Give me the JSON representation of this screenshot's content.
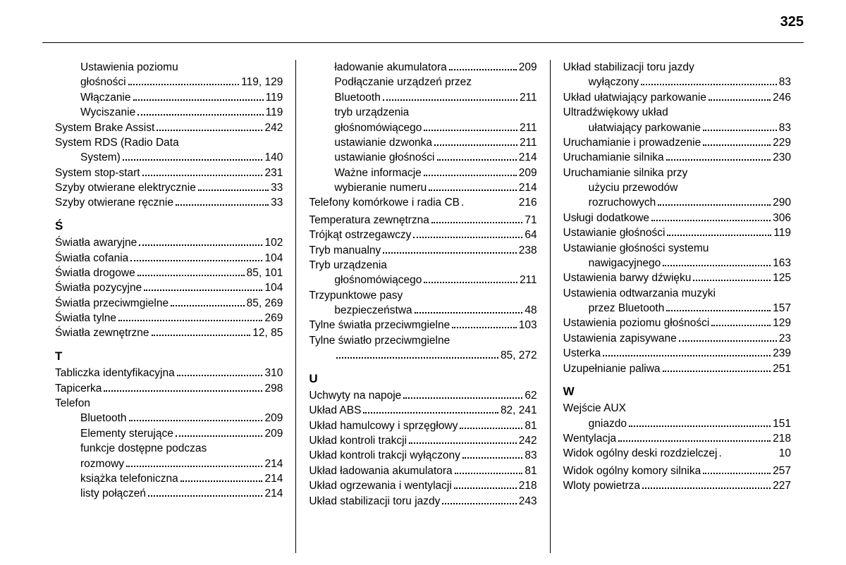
{
  "page_number": "325",
  "columns": [
    {
      "items": [
        {
          "type": "wrap",
          "indent": 2,
          "text": "Ustawienia poziomu"
        },
        {
          "type": "entry",
          "indent": 2,
          "label": "głośności",
          "pages": "119, 129"
        },
        {
          "type": "entry",
          "indent": 2,
          "label": "Włączanie",
          "pages": "119"
        },
        {
          "type": "entry",
          "indent": 2,
          "label": "Wyciszanie",
          "pages": "119"
        },
        {
          "type": "entry",
          "indent": 0,
          "label": "System Brake Assist",
          "pages": "242"
        },
        {
          "type": "wrap",
          "indent": 0,
          "text": "System RDS (Radio Data"
        },
        {
          "type": "entry",
          "indent": 2,
          "label": "System)",
          "pages": "140"
        },
        {
          "type": "entry",
          "indent": 0,
          "label": "System stop-start",
          "pages": "231"
        },
        {
          "type": "entry",
          "indent": 0,
          "label": "Szyby otwierane elektrycznie",
          "pages": "33"
        },
        {
          "type": "entry",
          "indent": 0,
          "label": "Szyby otwierane ręcznie",
          "pages": "33"
        },
        {
          "type": "head",
          "text": "Ś"
        },
        {
          "type": "entry",
          "indent": 0,
          "label": "Światła awaryjne",
          "pages": "102"
        },
        {
          "type": "entry",
          "indent": 0,
          "label": "Światła cofania",
          "pages": "104"
        },
        {
          "type": "entry",
          "indent": 0,
          "label": "Światła drogowe",
          "pages": "85, 101"
        },
        {
          "type": "entry",
          "indent": 0,
          "label": "Światła pozycyjne",
          "pages": "104"
        },
        {
          "type": "entry",
          "indent": 0,
          "label": "Światła przeciwmgielne",
          "pages": "85, 269"
        },
        {
          "type": "entry",
          "indent": 0,
          "label": "Światła tylne",
          "pages": "269"
        },
        {
          "type": "entry",
          "indent": 0,
          "label": "Światła zewnętrzne",
          "pages": "12, 85"
        },
        {
          "type": "head",
          "text": "T"
        },
        {
          "type": "entry",
          "indent": 0,
          "label": "Tabliczka identyfikacyjna",
          "pages": "310"
        },
        {
          "type": "entry",
          "indent": 0,
          "label": "Tapicerka",
          "pages": "298"
        },
        {
          "type": "wrap",
          "indent": 0,
          "text": "Telefon"
        },
        {
          "type": "entry",
          "indent": 2,
          "label": "Bluetooth",
          "pages": "209"
        },
        {
          "type": "entry",
          "indent": 2,
          "label": "Elementy sterujące",
          "pages": "209"
        },
        {
          "type": "wrap",
          "indent": 2,
          "text": "funkcje dostępne podczas"
        },
        {
          "type": "entry",
          "indent": 2,
          "label": "rozmowy",
          "pages": "214"
        },
        {
          "type": "entry",
          "indent": 2,
          "label": "książka telefoniczna",
          "pages": "214"
        },
        {
          "type": "entry",
          "indent": 2,
          "label": "listy połączeń",
          "pages": "214"
        }
      ]
    },
    {
      "items": [
        {
          "type": "entry",
          "indent": 2,
          "label": "ładowanie akumulatora",
          "pages": "209"
        },
        {
          "type": "wrap",
          "indent": 2,
          "text": "Podłączanie urządzeń przez"
        },
        {
          "type": "entry",
          "indent": 2,
          "label": "Bluetooth",
          "pages": "211"
        },
        {
          "type": "wrap",
          "indent": 2,
          "text": "tryb urządzenia"
        },
        {
          "type": "entry",
          "indent": 2,
          "label": "głośnomówiącego",
          "pages": "211"
        },
        {
          "type": "entry",
          "indent": 2,
          "label": "ustawianie dzwonka",
          "pages": "211"
        },
        {
          "type": "entry",
          "indent": 2,
          "label": "ustawianie głośności",
          "pages": "214"
        },
        {
          "type": "entry",
          "indent": 2,
          "label": "Ważne informacje",
          "pages": "209"
        },
        {
          "type": "entry",
          "indent": 2,
          "label": "wybieranie numeru",
          "pages": "214"
        },
        {
          "type": "entry",
          "indent": 0,
          "label": "Telefony komórkowe i radia CB",
          "pages": "216",
          "tight": true
        },
        {
          "type": "entry",
          "indent": 0,
          "label": "Temperatura zewnętrzna",
          "pages": "71"
        },
        {
          "type": "entry",
          "indent": 0,
          "label": "Trójkąt ostrzegawczy",
          "pages": "64"
        },
        {
          "type": "entry",
          "indent": 0,
          "label": "Tryb manualny",
          "pages": "238"
        },
        {
          "type": "wrap",
          "indent": 0,
          "text": "Tryb urządzenia"
        },
        {
          "type": "entry",
          "indent": 2,
          "label": "głośnomówiącego",
          "pages": "211"
        },
        {
          "type": "wrap",
          "indent": 0,
          "text": "Trzypunktowe pasy"
        },
        {
          "type": "entry",
          "indent": 2,
          "label": "bezpieczeństwa",
          "pages": "48"
        },
        {
          "type": "entry",
          "indent": 0,
          "label": "Tylne światła przeciwmgielne",
          "pages": "103"
        },
        {
          "type": "wrap",
          "indent": 0,
          "text": "Tylne światło przeciwmgielne"
        },
        {
          "type": "entry",
          "indent": 2,
          "label": "",
          "pages": "85, 272"
        },
        {
          "type": "head",
          "text": "U"
        },
        {
          "type": "entry",
          "indent": 0,
          "label": "Uchwyty na napoje",
          "pages": "62"
        },
        {
          "type": "entry",
          "indent": 0,
          "label": "Układ ABS",
          "pages": "82, 241"
        },
        {
          "type": "entry",
          "indent": 0,
          "label": "Układ hamulcowy i sprzęgłowy",
          "pages": "81"
        },
        {
          "type": "entry",
          "indent": 0,
          "label": "Układ kontroli trakcji",
          "pages": "242"
        },
        {
          "type": "entry",
          "indent": 0,
          "label": "Układ kontroli trakcji wyłączony",
          "pages": "83"
        },
        {
          "type": "entry",
          "indent": 0,
          "label": "Układ ładowania akumulatora",
          "pages": "81"
        },
        {
          "type": "entry",
          "indent": 0,
          "label": "Układ ogrzewania i wentylacji",
          "pages": "218"
        },
        {
          "type": "entry",
          "indent": 0,
          "label": "Układ stabilizacji toru jazdy",
          "pages": "243"
        }
      ]
    },
    {
      "items": [
        {
          "type": "wrap",
          "indent": 0,
          "text": "Układ stabilizacji toru jazdy"
        },
        {
          "type": "entry",
          "indent": 2,
          "label": "wyłączony",
          "pages": "83"
        },
        {
          "type": "entry",
          "indent": 0,
          "label": "Układ ułatwiający parkowanie",
          "pages": "246"
        },
        {
          "type": "wrap",
          "indent": 0,
          "text": "Ultradźwiękowy układ"
        },
        {
          "type": "entry",
          "indent": 2,
          "label": "ułatwiający parkowanie",
          "pages": "83"
        },
        {
          "type": "entry",
          "indent": 0,
          "label": "Uruchamianie i prowadzenie",
          "pages": "229"
        },
        {
          "type": "entry",
          "indent": 0,
          "label": "Uruchamianie silnika",
          "pages": "230"
        },
        {
          "type": "wrap",
          "indent": 0,
          "text": "Uruchamianie silnika przy"
        },
        {
          "type": "wrap",
          "indent": 2,
          "text": "użyciu przewodów"
        },
        {
          "type": "entry",
          "indent": 2,
          "label": "rozruchowych",
          "pages": "290"
        },
        {
          "type": "entry",
          "indent": 0,
          "label": "Usługi dodatkowe",
          "pages": "306"
        },
        {
          "type": "entry",
          "indent": 0,
          "label": "Ustawianie głośności",
          "pages": "119"
        },
        {
          "type": "wrap",
          "indent": 0,
          "text": "Ustawianie głośności systemu"
        },
        {
          "type": "entry",
          "indent": 2,
          "label": "nawigacyjnego",
          "pages": "163"
        },
        {
          "type": "entry",
          "indent": 0,
          "label": "Ustawienia barwy dźwięku",
          "pages": "125"
        },
        {
          "type": "wrap",
          "indent": 0,
          "text": "Ustawienia odtwarzania muzyki"
        },
        {
          "type": "entry",
          "indent": 2,
          "label": "przez Bluetooth",
          "pages": "157"
        },
        {
          "type": "entry",
          "indent": 0,
          "label": "Ustawienia poziomu głośności",
          "pages": "129"
        },
        {
          "type": "entry",
          "indent": 0,
          "label": "Ustawienia zapisywane",
          "pages": "23"
        },
        {
          "type": "entry",
          "indent": 0,
          "label": "Usterka",
          "pages": "239"
        },
        {
          "type": "entry",
          "indent": 0,
          "label": "Uzupełnianie paliwa",
          "pages": "251"
        },
        {
          "type": "head",
          "text": "W"
        },
        {
          "type": "wrap",
          "indent": 0,
          "text": "Wejście AUX"
        },
        {
          "type": "entry",
          "indent": 2,
          "label": "gniazdo",
          "pages": "151"
        },
        {
          "type": "entry",
          "indent": 0,
          "label": "Wentylacja",
          "pages": "218"
        },
        {
          "type": "entry",
          "indent": 0,
          "label": "Widok ogólny deski rozdzielczej",
          "pages": "10",
          "tight": true
        },
        {
          "type": "entry",
          "indent": 0,
          "label": "Widok ogólny komory silnika",
          "pages": "257"
        },
        {
          "type": "entry",
          "indent": 0,
          "label": "Wloty powietrza",
          "pages": "227"
        }
      ]
    }
  ]
}
